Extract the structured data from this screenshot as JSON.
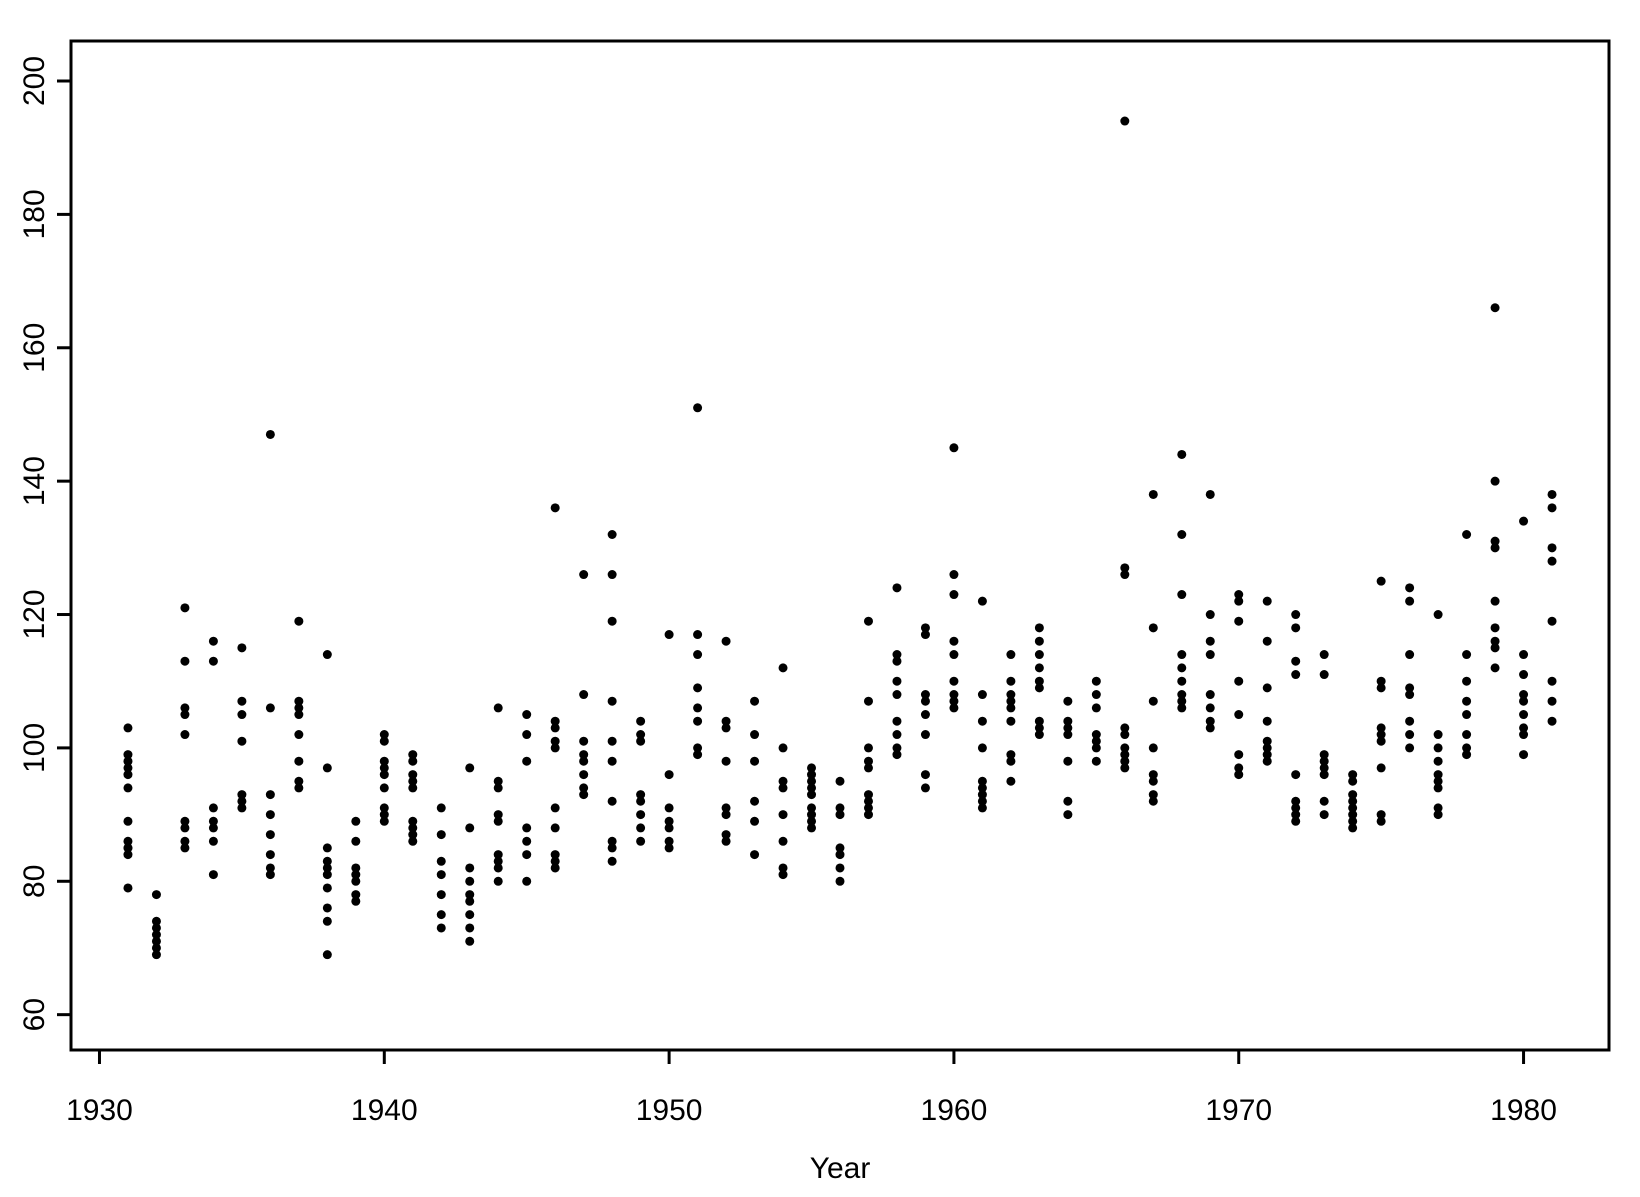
{
  "chart_data": {
    "type": "scatter",
    "x_label": "Year",
    "color": "#000000",
    "xlim": [
      1929,
      1983
    ],
    "ylim": [
      54.7,
      206
    ],
    "xticks": [
      1930,
      1940,
      1950,
      1960,
      1970,
      1980
    ],
    "yticks": [
      60,
      80,
      100,
      120,
      140,
      160,
      180,
      200
    ],
    "x": [
      1931,
      1931,
      1931,
      1931,
      1931,
      1931,
      1931,
      1931,
      1931,
      1931,
      1931,
      1931,
      1932,
      1932,
      1932,
      1932,
      1932,
      1932,
      1932,
      1933,
      1933,
      1933,
      1933,
      1933,
      1933,
      1933,
      1933,
      1933,
      1934,
      1934,
      1934,
      1934,
      1934,
      1934,
      1934,
      1935,
      1935,
      1935,
      1935,
      1935,
      1935,
      1935,
      1936,
      1936,
      1936,
      1936,
      1936,
      1936,
      1936,
      1936,
      1937,
      1937,
      1937,
      1937,
      1937,
      1937,
      1937,
      1937,
      1938,
      1938,
      1938,
      1938,
      1938,
      1938,
      1938,
      1938,
      1938,
      1938,
      1939,
      1939,
      1939,
      1939,
      1939,
      1939,
      1939,
      1940,
      1940,
      1940,
      1940,
      1940,
      1940,
      1940,
      1940,
      1940,
      1941,
      1941,
      1941,
      1941,
      1941,
      1941,
      1941,
      1941,
      1941,
      1942,
      1942,
      1942,
      1942,
      1942,
      1942,
      1942,
      1943,
      1943,
      1943,
      1943,
      1943,
      1943,
      1943,
      1943,
      1943,
      1944,
      1944,
      1944,
      1944,
      1944,
      1944,
      1944,
      1944,
      1944,
      1945,
      1945,
      1945,
      1945,
      1945,
      1945,
      1945,
      1946,
      1946,
      1946,
      1946,
      1946,
      1946,
      1946,
      1946,
      1946,
      1946,
      1947,
      1947,
      1947,
      1947,
      1947,
      1947,
      1947,
      1947,
      1948,
      1948,
      1948,
      1948,
      1948,
      1948,
      1948,
      1948,
      1948,
      1948,
      1949,
      1949,
      1949,
      1949,
      1949,
      1949,
      1949,
      1949,
      1950,
      1950,
      1950,
      1950,
      1950,
      1950,
      1950,
      1951,
      1951,
      1951,
      1951,
      1951,
      1951,
      1951,
      1951,
      1952,
      1952,
      1952,
      1952,
      1952,
      1952,
      1952,
      1952,
      1953,
      1953,
      1953,
      1953,
      1953,
      1953,
      1954,
      1954,
      1954,
      1954,
      1954,
      1954,
      1954,
      1954,
      1955,
      1955,
      1955,
      1955,
      1955,
      1955,
      1955,
      1955,
      1955,
      1956,
      1956,
      1956,
      1956,
      1956,
      1956,
      1956,
      1957,
      1957,
      1957,
      1957,
      1957,
      1957,
      1957,
      1957,
      1957,
      1958,
      1958,
      1958,
      1958,
      1958,
      1958,
      1958,
      1958,
      1958,
      1959,
      1959,
      1959,
      1959,
      1959,
      1959,
      1959,
      1959,
      1960,
      1960,
      1960,
      1960,
      1960,
      1960,
      1960,
      1960,
      1960,
      1961,
      1961,
      1961,
      1961,
      1961,
      1961,
      1961,
      1961,
      1961,
      1962,
      1962,
      1962,
      1962,
      1962,
      1962,
      1962,
      1962,
      1962,
      1963,
      1963,
      1963,
      1963,
      1963,
      1963,
      1963,
      1963,
      1963,
      1964,
      1964,
      1964,
      1964,
      1964,
      1964,
      1964,
      1965,
      1965,
      1965,
      1965,
      1965,
      1965,
      1965,
      1966,
      1966,
      1966,
      1966,
      1966,
      1966,
      1966,
      1966,
      1966,
      1967,
      1967,
      1967,
      1967,
      1967,
      1967,
      1967,
      1967,
      1968,
      1968,
      1968,
      1968,
      1968,
      1968,
      1968,
      1968,
      1968,
      1969,
      1969,
      1969,
      1969,
      1969,
      1969,
      1969,
      1969,
      1970,
      1970,
      1970,
      1970,
      1970,
      1970,
      1970,
      1970,
      1971,
      1971,
      1971,
      1971,
      1971,
      1971,
      1971,
      1971,
      1972,
      1972,
      1972,
      1972,
      1972,
      1972,
      1972,
      1972,
      1972,
      1973,
      1973,
      1973,
      1973,
      1973,
      1973,
      1973,
      1973,
      1974,
      1974,
      1974,
      1974,
      1974,
      1974,
      1974,
      1974,
      1975,
      1975,
      1975,
      1975,
      1975,
      1975,
      1975,
      1975,
      1975,
      1976,
      1976,
      1976,
      1976,
      1976,
      1976,
      1976,
      1976,
      1977,
      1977,
      1977,
      1977,
      1977,
      1977,
      1977,
      1977,
      1977,
      1978,
      1978,
      1978,
      1978,
      1978,
      1978,
      1978,
      1978,
      1979,
      1979,
      1979,
      1979,
      1979,
      1979,
      1979,
      1979,
      1979,
      1980,
      1980,
      1980,
      1980,
      1980,
      1980,
      1980,
      1980,
      1980,
      1981,
      1981,
      1981,
      1981,
      1981,
      1981,
      1981,
      1981
    ],
    "values": [
      103,
      99,
      98,
      97,
      96,
      94,
      89,
      86,
      85,
      85,
      84,
      79,
      78,
      74,
      73,
      72,
      71,
      70,
      69,
      121,
      113,
      106,
      105,
      102,
      89,
      88,
      86,
      85,
      116,
      113,
      91,
      89,
      88,
      86,
      81,
      115,
      107,
      105,
      101,
      93,
      92,
      91,
      147,
      106,
      93,
      90,
      87,
      84,
      82,
      81,
      119,
      107,
      106,
      105,
      102,
      98,
      95,
      94,
      114,
      97,
      85,
      83,
      82,
      81,
      79,
      76,
      74,
      69,
      89,
      86,
      82,
      81,
      80,
      78,
      77,
      102,
      101,
      98,
      97,
      96,
      94,
      91,
      90,
      89,
      99,
      98,
      96,
      95,
      94,
      89,
      88,
      87,
      86,
      91,
      87,
      83,
      81,
      78,
      75,
      73,
      97,
      88,
      82,
      80,
      78,
      77,
      75,
      73,
      71,
      106,
      95,
      94,
      90,
      89,
      84,
      83,
      82,
      80,
      105,
      102,
      98,
      88,
      86,
      84,
      80,
      136,
      104,
      103,
      101,
      100,
      91,
      88,
      84,
      83,
      82,
      126,
      108,
      101,
      99,
      98,
      96,
      94,
      93,
      132,
      126,
      119,
      107,
      101,
      98,
      92,
      86,
      85,
      83,
      104,
      102,
      101,
      93,
      92,
      90,
      88,
      86,
      117,
      96,
      91,
      89,
      88,
      86,
      85,
      151,
      117,
      114,
      109,
      106,
      104,
      100,
      99,
      116,
      104,
      103,
      98,
      91,
      90,
      87,
      86,
      107,
      102,
      98,
      92,
      89,
      84,
      112,
      100,
      95,
      94,
      90,
      86,
      82,
      81,
      97,
      96,
      95,
      94,
      93,
      91,
      90,
      89,
      88,
      95,
      91,
      90,
      85,
      84,
      82,
      80,
      119,
      107,
      100,
      98,
      97,
      93,
      92,
      91,
      90,
      124,
      114,
      113,
      110,
      108,
      104,
      102,
      100,
      99,
      118,
      117,
      108,
      107,
      105,
      102,
      96,
      94,
      145,
      126,
      123,
      116,
      114,
      110,
      108,
      107,
      106,
      122,
      108,
      104,
      100,
      95,
      94,
      93,
      92,
      91,
      114,
      110,
      108,
      107,
      106,
      104,
      99,
      98,
      95,
      118,
      116,
      114,
      112,
      110,
      109,
      104,
      103,
      102,
      107,
      104,
      103,
      102,
      98,
      92,
      90,
      110,
      108,
      106,
      102,
      101,
      100,
      98,
      194,
      127,
      126,
      103,
      102,
      100,
      99,
      98,
      97,
      138,
      118,
      107,
      100,
      96,
      95,
      93,
      92,
      144,
      132,
      123,
      114,
      112,
      110,
      108,
      107,
      106,
      138,
      120,
      116,
      114,
      108,
      106,
      104,
      103,
      123,
      122,
      119,
      110,
      105,
      99,
      97,
      96,
      122,
      116,
      109,
      104,
      101,
      100,
      99,
      98,
      120,
      118,
      113,
      111,
      96,
      92,
      91,
      90,
      89,
      114,
      111,
      99,
      98,
      97,
      96,
      92,
      90,
      96,
      95,
      93,
      92,
      91,
      90,
      89,
      88,
      125,
      110,
      109,
      103,
      102,
      101,
      97,
      90,
      89,
      124,
      122,
      114,
      109,
      108,
      104,
      102,
      100,
      120,
      102,
      100,
      98,
      96,
      95,
      94,
      91,
      90,
      132,
      114,
      110,
      107,
      105,
      102,
      100,
      99,
      166,
      140,
      131,
      130,
      122,
      118,
      116,
      115,
      112,
      134,
      114,
      111,
      108,
      107,
      105,
      103,
      102,
      99,
      138,
      136,
      130,
      128,
      119,
      110,
      107,
      104
    ]
  }
}
